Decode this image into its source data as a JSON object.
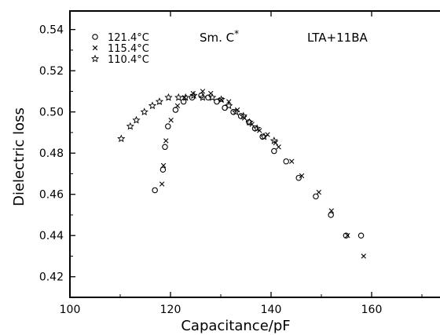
{
  "chart_data": {
    "type": "scatter",
    "title": "",
    "xlabel": "Capacitance/pF",
    "ylabel": "Dielectric loss",
    "xlim": [
      100,
      175
    ],
    "ylim": [
      0.41,
      0.549
    ],
    "x_ticks": [
      "100",
      "120",
      "140",
      "160"
    ],
    "y_ticks": [
      "0.42",
      "0.44",
      "0.46",
      "0.48",
      "0.50",
      "0.52",
      "0.54"
    ],
    "grid": false,
    "legend_position": "top-left",
    "annotations": {
      "phase_main": "Sm. C",
      "phase_sup": "*",
      "sample": "LTA+11BA"
    },
    "series": [
      {
        "name": "121.4°C",
        "marker": "circle",
        "points": [
          [
            116.9,
            0.462
          ],
          [
            118.5,
            0.472
          ],
          [
            118.9,
            0.483
          ],
          [
            119.5,
            0.493
          ],
          [
            121.0,
            0.501
          ],
          [
            122.6,
            0.505
          ],
          [
            124.3,
            0.507
          ],
          [
            126.1,
            0.508
          ],
          [
            127.5,
            0.507
          ],
          [
            129.2,
            0.505
          ],
          [
            130.8,
            0.502
          ],
          [
            132.5,
            0.5
          ],
          [
            134.0,
            0.498
          ],
          [
            135.6,
            0.495
          ],
          [
            136.8,
            0.492
          ],
          [
            138.3,
            0.488
          ],
          [
            140.6,
            0.481
          ],
          [
            143.0,
            0.476
          ],
          [
            145.5,
            0.468
          ],
          [
            148.9,
            0.459
          ],
          [
            151.9,
            0.45
          ],
          [
            154.9,
            0.44
          ],
          [
            157.9,
            0.44
          ]
        ]
      },
      {
        "name": "115.4°C",
        "marker": "cross",
        "points": [
          [
            118.3,
            0.465
          ],
          [
            118.6,
            0.474
          ],
          [
            119.1,
            0.486
          ],
          [
            120.1,
            0.496
          ],
          [
            121.4,
            0.503
          ],
          [
            122.8,
            0.507
          ],
          [
            124.5,
            0.509
          ],
          [
            126.4,
            0.51
          ],
          [
            128.0,
            0.509
          ],
          [
            130.1,
            0.506
          ],
          [
            131.6,
            0.505
          ],
          [
            133.3,
            0.501
          ],
          [
            134.7,
            0.497
          ],
          [
            136.2,
            0.494
          ],
          [
            137.7,
            0.491
          ],
          [
            139.3,
            0.489
          ],
          [
            140.9,
            0.485
          ],
          [
            141.5,
            0.483
          ],
          [
            144.1,
            0.476
          ],
          [
            146.1,
            0.469
          ],
          [
            149.5,
            0.461
          ],
          [
            152.0,
            0.452
          ],
          [
            155.2,
            0.44
          ],
          [
            158.4,
            0.43
          ]
        ]
      },
      {
        "name": "110.4°C",
        "marker": "star",
        "points": [
          [
            110.2,
            0.487
          ],
          [
            112.0,
            0.493
          ],
          [
            113.2,
            0.496
          ],
          [
            114.8,
            0.5
          ],
          [
            116.4,
            0.503
          ],
          [
            117.8,
            0.505
          ],
          [
            119.6,
            0.507
          ],
          [
            121.6,
            0.507
          ],
          [
            123.0,
            0.507
          ],
          [
            124.6,
            0.508
          ],
          [
            126.4,
            0.507
          ],
          [
            128.3,
            0.507
          ],
          [
            130.1,
            0.506
          ],
          [
            131.6,
            0.503
          ],
          [
            133.0,
            0.5
          ],
          [
            134.5,
            0.498
          ],
          [
            135.7,
            0.495
          ],
          [
            137.2,
            0.492
          ],
          [
            138.6,
            0.488
          ],
          [
            140.6,
            0.486
          ]
        ]
      }
    ]
  }
}
